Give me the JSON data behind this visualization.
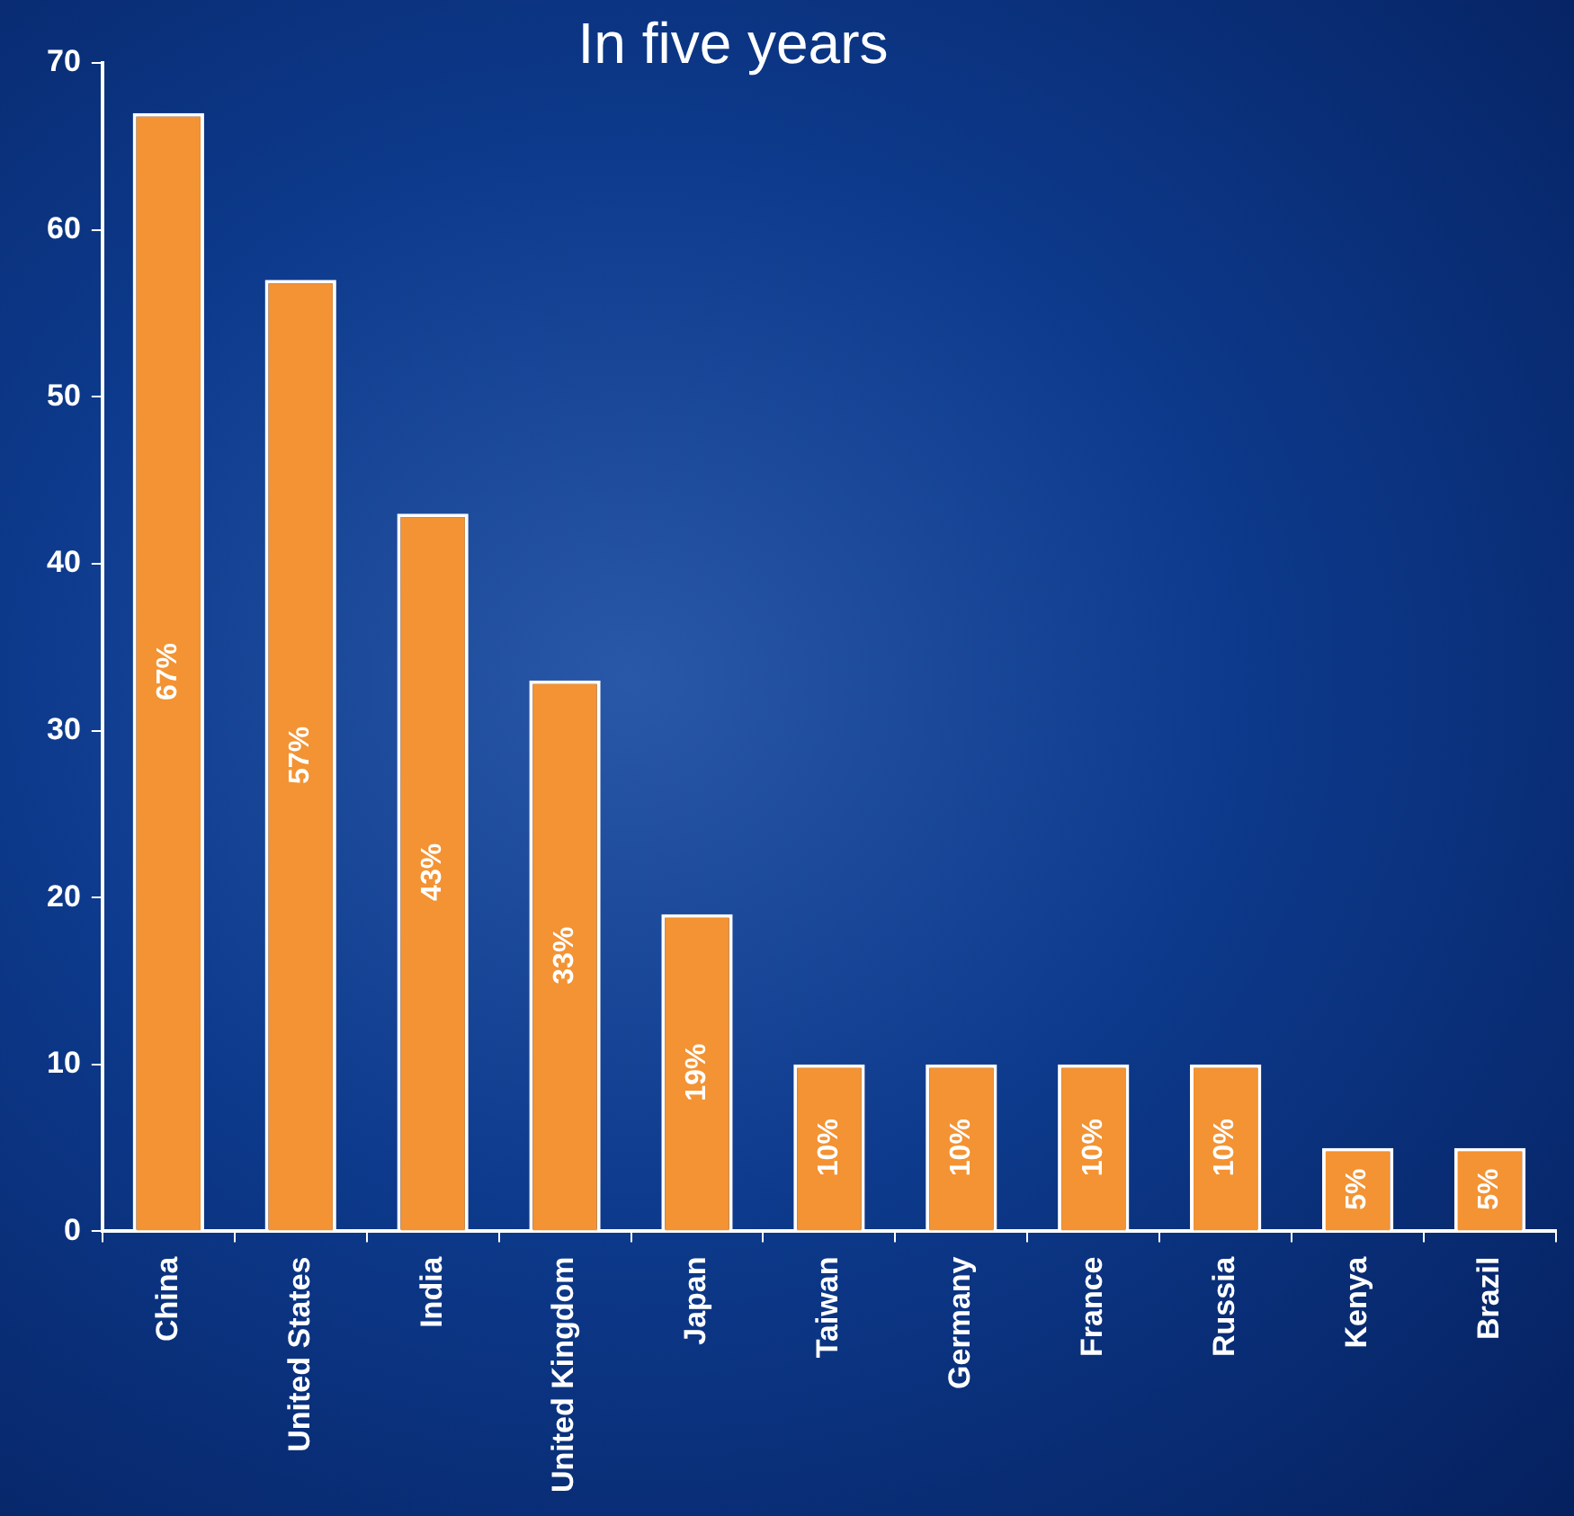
{
  "chart_data": {
    "type": "bar",
    "title": "In five years",
    "categories": [
      "China",
      "United States",
      "India",
      "United Kingdom",
      "Japan",
      "Taiwan",
      "Germany",
      "France",
      "Russia",
      "Kenya",
      "Brazil"
    ],
    "values": [
      67,
      57,
      43,
      33,
      19,
      10,
      10,
      10,
      10,
      5,
      5
    ],
    "value_labels": [
      "67%",
      "57%",
      "43%",
      "33%",
      "19%",
      "10%",
      "10%",
      "10%",
      "10%",
      "5%",
      "5%"
    ],
    "color": "#f39333",
    "ylim": [
      0,
      70
    ],
    "yticks": [
      0,
      10,
      20,
      30,
      40,
      50,
      60,
      70
    ],
    "grid": false,
    "legend": false
  }
}
